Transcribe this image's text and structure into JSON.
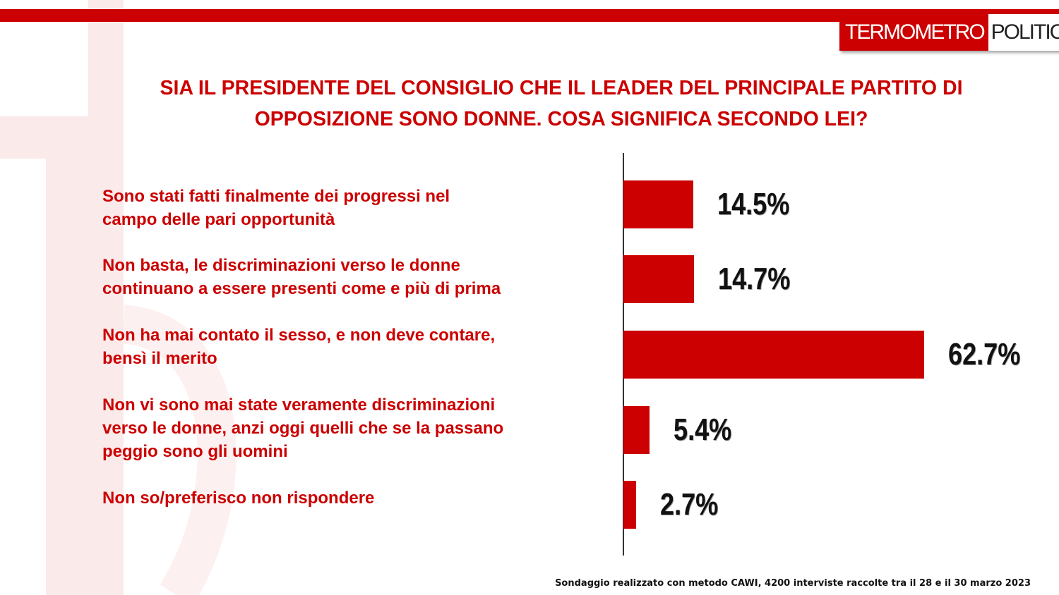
{
  "logo": {
    "part1": "TERMOMETRO",
    "part2": "POLITICO"
  },
  "title_lines": [
    "SIA IL PRESIDENTE DEL CONSIGLIO CHE IL LEADER DEL PRINCIPALE PARTITO DI",
    "OPPOSIZIONE SONO DONNE. COSA SIGNIFICA SECONDO LEI?"
  ],
  "chart_data": {
    "type": "bar",
    "orientation": "horizontal",
    "title": "SIA IL PRESIDENTE DEL CONSIGLIO CHE IL LEADER DEL PRINCIPALE PARTITO DI OPPOSIZIONE SONO DONNE. COSA SIGNIFICA SECONDO LEI?",
    "categories": [
      [
        "Sono stati fatti finalmente dei progressi nel",
        "campo delle pari opportunità"
      ],
      [
        "Non basta, le discriminazioni verso le donne",
        "continuano a essere presenti come e più di prima"
      ],
      [
        "Non ha mai contato il sesso, e non deve contare,",
        "bensì il merito"
      ],
      [
        "Non vi sono mai state veramente discriminazioni",
        "verso le donne, anzi oggi quelli che se la passano",
        "peggio sono gli uomini"
      ],
      [
        "Non so/preferisco non rispondere"
      ]
    ],
    "values": [
      14.5,
      14.7,
      62.7,
      5.4,
      2.7
    ],
    "value_labels": [
      "14.5%",
      "14.7%",
      "62.7%",
      "5.4%",
      "2.7%"
    ],
    "bar_color": "#cc0000",
    "xlabel": "",
    "ylabel": "",
    "xlim": [
      0,
      100
    ],
    "grid": false
  },
  "footnote": "Sondaggio realizzato con metodo CAWI, 4200 interviste raccolte tra il 28 e il 30 marzo 2023",
  "colors": {
    "accent": "#cc0000",
    "text": "#111111"
  }
}
